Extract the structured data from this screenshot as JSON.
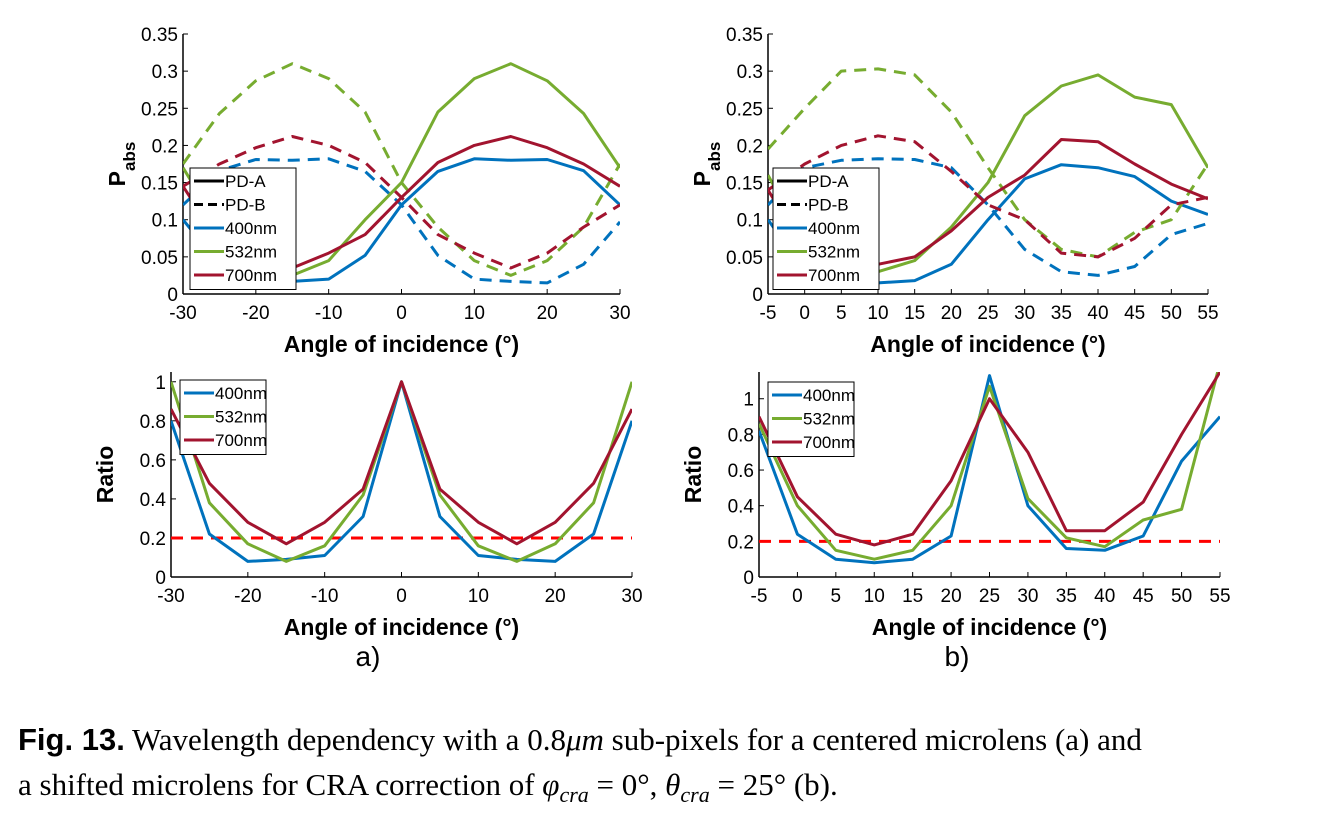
{
  "chart_data": [
    {
      "type": "line",
      "xlabel": "Angle of incidence (°)",
      "ylabel": "P",
      "ylabel_sub": "abs",
      "x": [
        -30,
        -25,
        -20,
        -15,
        -10,
        -5,
        0,
        5,
        10,
        15,
        20,
        25,
        30
      ],
      "xlim": [
        -30,
        30
      ],
      "xticks": [
        -30,
        -20,
        -10,
        0,
        10,
        20,
        30
      ],
      "ylim": [
        0,
        0.35
      ],
      "yticks": [
        0,
        0.05,
        0.1,
        0.15,
        0.2,
        0.25,
        0.3,
        0.35
      ],
      "line_styles": [
        {
          "name": "PD-A",
          "dashed": false
        },
        {
          "name": "PD-B",
          "dashed": true
        }
      ],
      "series": [
        {
          "name": "400nm",
          "color": "#0072bd",
          "values": [
            0.1,
            0.04,
            0.015,
            0.017,
            0.02,
            0.052,
            0.12,
            0.165,
            0.182,
            0.18,
            0.181,
            0.166,
            0.12
          ],
          "values_b": [
            0.12,
            0.166,
            0.181,
            0.18,
            0.182,
            0.165,
            0.12,
            0.052,
            0.02,
            0.017,
            0.015,
            0.04,
            0.097
          ]
        },
        {
          "name": "532nm",
          "color": "#77ac30",
          "values": [
            0.17,
            0.09,
            0.045,
            0.025,
            0.045,
            0.1,
            0.15,
            0.245,
            0.29,
            0.31,
            0.287,
            0.243,
            0.17
          ],
          "values_b": [
            0.175,
            0.243,
            0.287,
            0.31,
            0.29,
            0.245,
            0.15,
            0.09,
            0.045,
            0.025,
            0.045,
            0.09,
            0.175
          ]
        },
        {
          "name": "700nm",
          "color": "#a2142f",
          "values": [
            0.145,
            0.07,
            0.04,
            0.035,
            0.055,
            0.08,
            0.13,
            0.177,
            0.2,
            0.212,
            0.197,
            0.175,
            0.145
          ],
          "values_b": [
            0.145,
            0.175,
            0.197,
            0.212,
            0.2,
            0.177,
            0.13,
            0.08,
            0.055,
            0.035,
            0.055,
            0.09,
            0.12
          ]
        }
      ]
    },
    {
      "type": "line",
      "xlabel": "Angle of incidence (°)",
      "ylabel": "P",
      "ylabel_sub": "abs",
      "x": [
        -5,
        0,
        5,
        10,
        15,
        20,
        25,
        30,
        35,
        40,
        45,
        50,
        55
      ],
      "xlim": [
        -5,
        55
      ],
      "xticks": [
        -5,
        0,
        5,
        10,
        15,
        20,
        25,
        30,
        35,
        40,
        45,
        50,
        55
      ],
      "ylim": [
        0,
        0.35
      ],
      "yticks": [
        0,
        0.05,
        0.1,
        0.15,
        0.2,
        0.25,
        0.3,
        0.35
      ],
      "line_styles": [
        {
          "name": "PD-A",
          "dashed": false
        },
        {
          "name": "PD-B",
          "dashed": true
        }
      ],
      "series": [
        {
          "name": "400nm",
          "color": "#0072bd",
          "values": [
            0.1,
            0.03,
            0.015,
            0.015,
            0.018,
            0.04,
            0.1,
            0.155,
            0.174,
            0.17,
            0.158,
            0.125,
            0.107
          ],
          "values_b": [
            0.12,
            0.17,
            0.18,
            0.182,
            0.181,
            0.17,
            0.12,
            0.06,
            0.03,
            0.025,
            0.037,
            0.08,
            0.095
          ]
        },
        {
          "name": "532nm",
          "color": "#77ac30",
          "values": [
            0.16,
            0.07,
            0.03,
            0.03,
            0.045,
            0.09,
            0.15,
            0.24,
            0.28,
            0.295,
            0.265,
            0.255,
            0.17
          ],
          "values_b": [
            0.195,
            0.25,
            0.3,
            0.303,
            0.295,
            0.245,
            0.17,
            0.1,
            0.06,
            0.05,
            0.083,
            0.1,
            0.175
          ]
        },
        {
          "name": "700nm",
          "color": "#a2142f",
          "values": [
            0.14,
            0.06,
            0.035,
            0.04,
            0.05,
            0.085,
            0.13,
            0.16,
            0.208,
            0.205,
            0.175,
            0.148,
            0.128
          ],
          "values_b": [
            0.14,
            0.175,
            0.2,
            0.213,
            0.205,
            0.165,
            0.12,
            0.1,
            0.055,
            0.05,
            0.075,
            0.12,
            0.13
          ]
        }
      ]
    },
    {
      "type": "line",
      "xlabel": "Angle of incidence (°)",
      "ylabel": "Ratio",
      "x": [
        -30,
        -25,
        -20,
        -15,
        -10,
        -5,
        0,
        5,
        10,
        15,
        20,
        25,
        30
      ],
      "xlim": [
        -30,
        30
      ],
      "xticks": [
        -30,
        -20,
        -10,
        0,
        10,
        20,
        30
      ],
      "ylim": [
        0,
        1.05
      ],
      "yticks": [
        0,
        0.2,
        0.4,
        0.6,
        0.8,
        1
      ],
      "hline": 0.2,
      "hline_color": "#ff0000",
      "series": [
        {
          "name": "400nm",
          "color": "#0072bd",
          "values": [
            0.8,
            0.22,
            0.08,
            0.09,
            0.11,
            0.31,
            1,
            0.31,
            0.11,
            0.09,
            0.08,
            0.22,
            0.8
          ]
        },
        {
          "name": "532nm",
          "color": "#77ac30",
          "values": [
            1.0,
            0.38,
            0.17,
            0.08,
            0.16,
            0.42,
            1,
            0.42,
            0.16,
            0.08,
            0.17,
            0.38,
            1.0
          ]
        },
        {
          "name": "700nm",
          "color": "#a2142f",
          "values": [
            0.86,
            0.48,
            0.28,
            0.17,
            0.28,
            0.45,
            1,
            0.45,
            0.28,
            0.17,
            0.28,
            0.48,
            0.86
          ]
        }
      ]
    },
    {
      "type": "line",
      "xlabel": "Angle of incidence (°)",
      "ylabel": "Ratio",
      "x": [
        -5,
        0,
        5,
        10,
        15,
        20,
        25,
        30,
        35,
        40,
        45,
        50,
        55
      ],
      "xlim": [
        -5,
        55
      ],
      "xticks": [
        -5,
        0,
        5,
        10,
        15,
        20,
        25,
        30,
        35,
        40,
        45,
        50,
        55
      ],
      "ylim": [
        0,
        1.15
      ],
      "yticks": [
        0,
        0.2,
        0.4,
        0.6,
        0.8,
        1
      ],
      "hline": 0.2,
      "hline_color": "#ff0000",
      "series": [
        {
          "name": "400nm",
          "color": "#0072bd",
          "values": [
            0.82,
            0.24,
            0.1,
            0.08,
            0.1,
            0.23,
            1.13,
            0.4,
            0.16,
            0.15,
            0.23,
            0.65,
            0.9
          ]
        },
        {
          "name": "532nm",
          "color": "#77ac30",
          "values": [
            0.86,
            0.4,
            0.15,
            0.1,
            0.15,
            0.4,
            1.07,
            0.44,
            0.22,
            0.17,
            0.32,
            0.38,
            1.2
          ]
        },
        {
          "name": "700nm",
          "color": "#a2142f",
          "values": [
            0.9,
            0.45,
            0.24,
            0.18,
            0.24,
            0.54,
            1.0,
            0.7,
            0.26,
            0.26,
            0.42,
            0.8,
            1.15
          ]
        }
      ]
    }
  ],
  "panel_labels": [
    "a)",
    "b)"
  ],
  "caption": {
    "label": "Fig. 13.",
    "lines": [
      [
        {
          "text": " Wavelength dependency with a 0.8"
        },
        {
          "text": "μm",
          "italic": true
        },
        {
          "text": " sub-pixels for a centered microlens (a) and"
        }
      ],
      [
        {
          "text": "a shifted microlens for CRA correction of "
        },
        {
          "text": "φ",
          "italic": true
        },
        {
          "text": "cra",
          "italic": true,
          "sub": true
        },
        {
          "text": " = 0°, "
        },
        {
          "text": "θ",
          "italic": true
        },
        {
          "text": "cra",
          "italic": true,
          "sub": true
        },
        {
          "text": " = 25° (b)."
        }
      ]
    ]
  }
}
